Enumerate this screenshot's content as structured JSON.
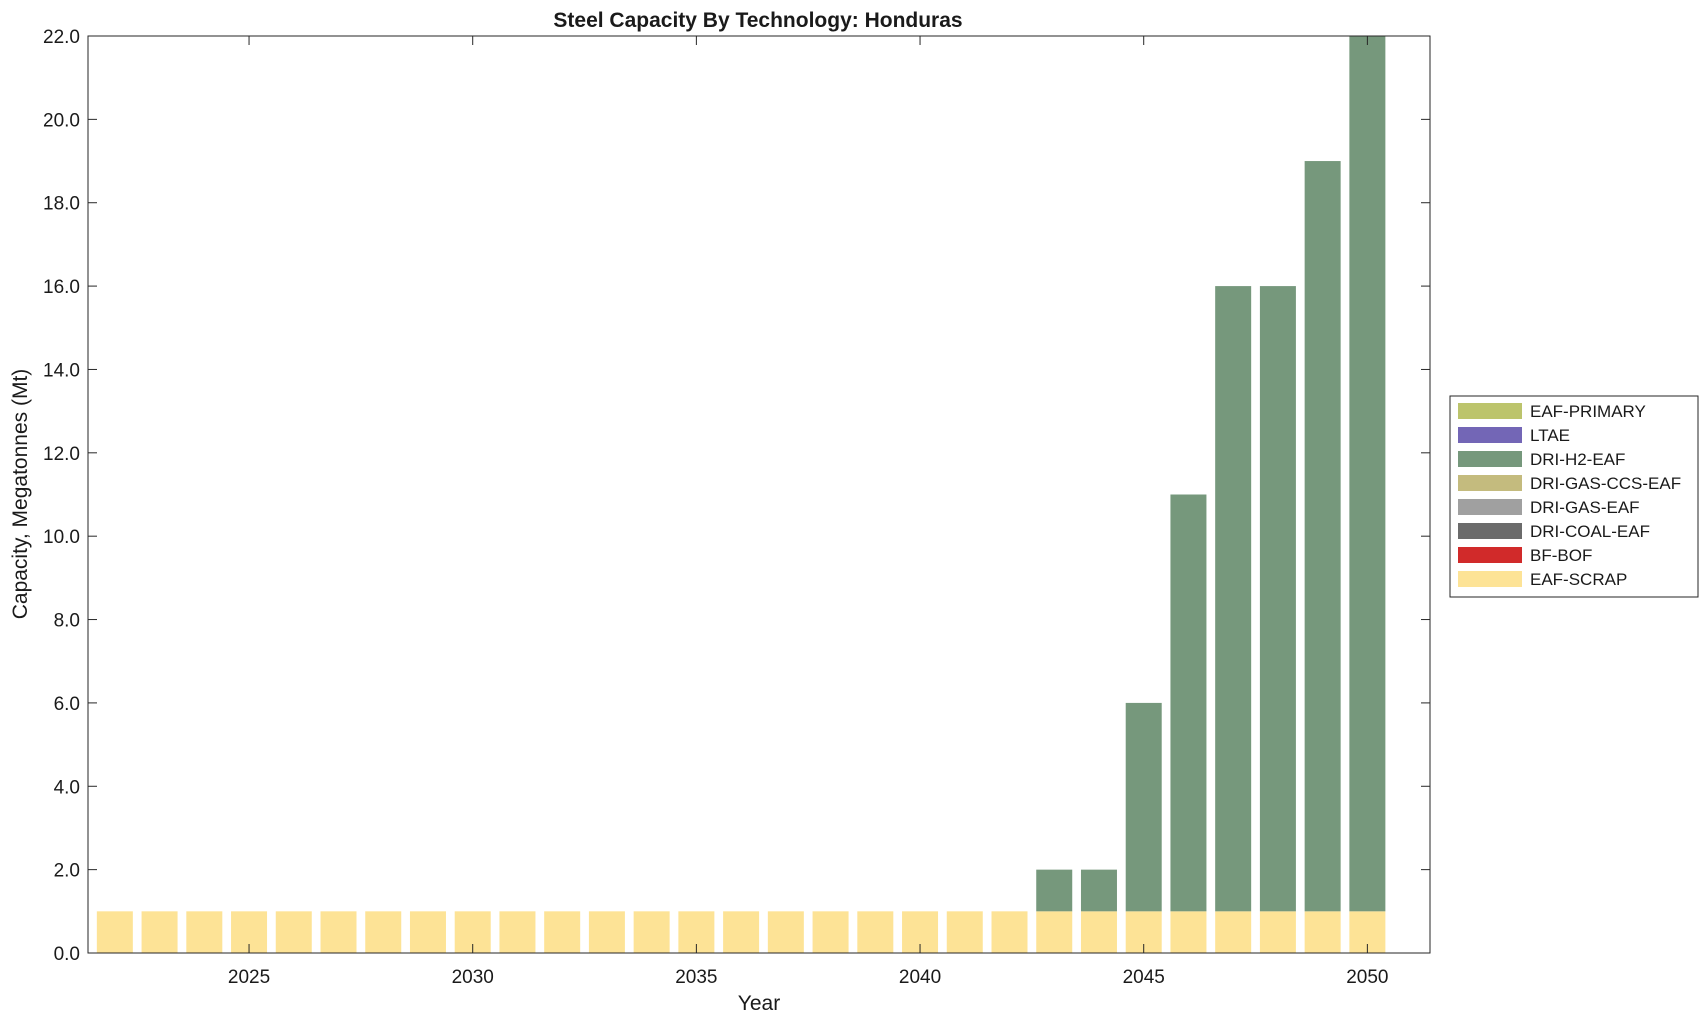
{
  "chart_data": {
    "type": "bar",
    "stacked": true,
    "title": "Steel Capacity By Technology: Honduras",
    "xlabel": "Year",
    "ylabel": "Capacity, Megatonnes (Mt)",
    "xlim": [
      2021.4,
      2051.4
    ],
    "ylim": [
      0,
      22
    ],
    "x": [
      2022,
      2023,
      2024,
      2025,
      2026,
      2027,
      2028,
      2029,
      2030,
      2031,
      2032,
      2033,
      2034,
      2035,
      2036,
      2037,
      2038,
      2039,
      2040,
      2041,
      2042,
      2043,
      2044,
      2045,
      2046,
      2047,
      2048,
      2049,
      2050
    ],
    "x_ticks": [
      2025,
      2030,
      2035,
      2040,
      2045,
      2050
    ],
    "y_ticks": [
      "0.0",
      "2.0",
      "4.0",
      "6.0",
      "8.0",
      "10.0",
      "12.0",
      "14.0",
      "16.0",
      "18.0",
      "20.0",
      "22.0"
    ],
    "series": [
      {
        "name": "EAF-SCRAP",
        "color": "#fde396",
        "values": [
          1,
          1,
          1,
          1,
          1,
          1,
          1,
          1,
          1,
          1,
          1,
          1,
          1,
          1,
          1,
          1,
          1,
          1,
          1,
          1,
          1,
          1,
          1,
          1,
          1,
          1,
          1,
          1,
          1
        ]
      },
      {
        "name": "BF-BOF",
        "color": "#d12a2a",
        "values": [
          0,
          0,
          0,
          0,
          0,
          0,
          0,
          0,
          0,
          0,
          0,
          0,
          0,
          0,
          0,
          0,
          0,
          0,
          0,
          0,
          0,
          0,
          0,
          0,
          0,
          0,
          0,
          0,
          0
        ]
      },
      {
        "name": "DRI-COAL-EAF",
        "color": "#6b6b6b",
        "values": [
          0,
          0,
          0,
          0,
          0,
          0,
          0,
          0,
          0,
          0,
          0,
          0,
          0,
          0,
          0,
          0,
          0,
          0,
          0,
          0,
          0,
          0,
          0,
          0,
          0,
          0,
          0,
          0,
          0
        ]
      },
      {
        "name": "DRI-GAS-EAF",
        "color": "#a0a0a0",
        "values": [
          0,
          0,
          0,
          0,
          0,
          0,
          0,
          0,
          0,
          0,
          0,
          0,
          0,
          0,
          0,
          0,
          0,
          0,
          0,
          0,
          0,
          0,
          0,
          0,
          0,
          0,
          0,
          0,
          0
        ]
      },
      {
        "name": "DRI-GAS-CCS-EAF",
        "color": "#c4bb7e",
        "values": [
          0,
          0,
          0,
          0,
          0,
          0,
          0,
          0,
          0,
          0,
          0,
          0,
          0,
          0,
          0,
          0,
          0,
          0,
          0,
          0,
          0,
          0,
          0,
          0,
          0,
          0,
          0,
          0,
          0
        ]
      },
      {
        "name": "DRI-H2-EAF",
        "color": "#76987c",
        "values": [
          0,
          0,
          0,
          0,
          0,
          0,
          0,
          0,
          0,
          0,
          0,
          0,
          0,
          0,
          0,
          0,
          0,
          0,
          0,
          0,
          0,
          1,
          1,
          5,
          10,
          15,
          15,
          18,
          21
        ]
      },
      {
        "name": "LTAE",
        "color": "#7366b6",
        "values": [
          0,
          0,
          0,
          0,
          0,
          0,
          0,
          0,
          0,
          0,
          0,
          0,
          0,
          0,
          0,
          0,
          0,
          0,
          0,
          0,
          0,
          0,
          0,
          0,
          0,
          0,
          0,
          0,
          0
        ]
      },
      {
        "name": "EAF-PRIMARY",
        "color": "#bcc46c",
        "values": [
          0,
          0,
          0,
          0,
          0,
          0,
          0,
          0,
          0,
          0,
          0,
          0,
          0,
          0,
          0,
          0,
          0,
          0,
          0,
          0,
          0,
          0,
          0,
          0,
          0,
          0,
          0,
          0,
          0
        ]
      }
    ],
    "legend": [
      "EAF-PRIMARY",
      "LTAE",
      "DRI-H2-EAF",
      "DRI-GAS-CCS-EAF",
      "DRI-GAS-EAF",
      "DRI-COAL-EAF",
      "BF-BOF",
      "EAF-SCRAP"
    ],
    "legend_position": "right",
    "grid": false
  }
}
